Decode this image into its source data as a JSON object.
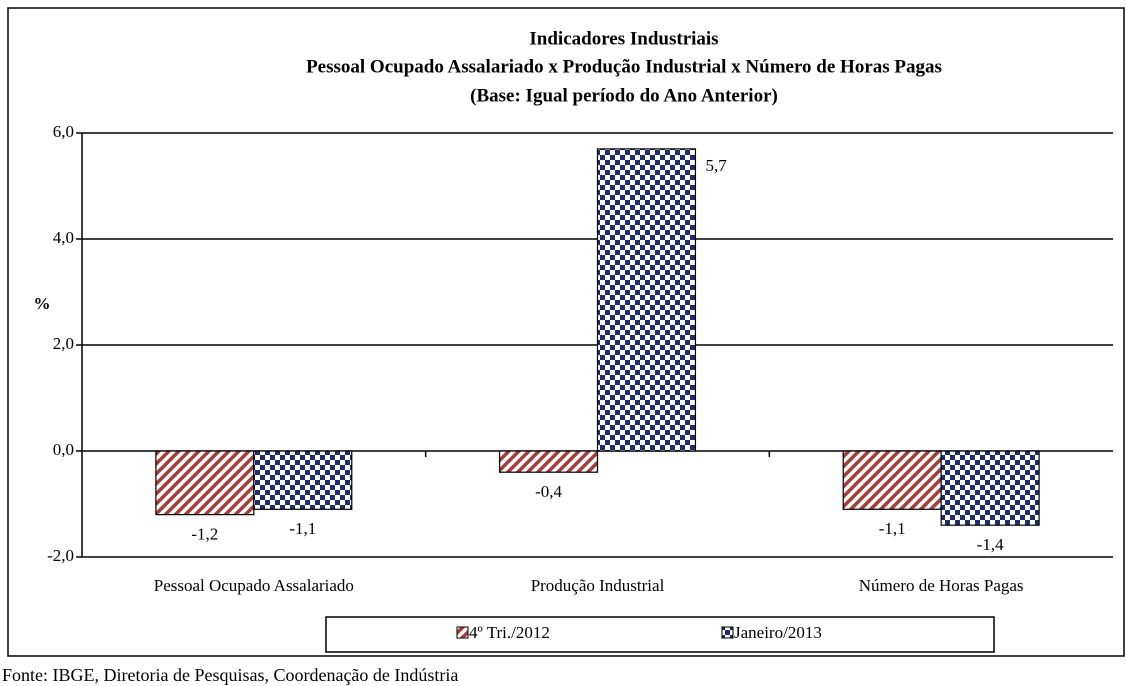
{
  "chart_data": {
    "type": "bar",
    "title": [
      "Indicadores Industriais",
      "Pessoal Ocupado  Assalariado x Produção Industrial x Número de Horas Pagas",
      "(Base: Igual período do Ano Anterior)"
    ],
    "y_label": "%",
    "categories": [
      "Pessoal Ocupado Assalariado",
      "Produção Industrial",
      "Número de Horas Pagas"
    ],
    "series": [
      {
        "name": "4º Tri./2012",
        "color": "#a3403b",
        "pattern": "hatch",
        "values": [
          -1.2,
          -0.4,
          -1.1
        ],
        "value_labels": [
          "-1,2",
          "-0,4",
          "-1,1"
        ]
      },
      {
        "name": "Janeiro/2013",
        "color": "#1f2d6e",
        "pattern": "checker",
        "values": [
          -1.1,
          5.7,
          -1.4
        ],
        "value_labels": [
          "-1,1",
          "5,7",
          "-1,4"
        ]
      }
    ],
    "ylim": [
      -2,
      6
    ],
    "yticks": [
      {
        "value": -2,
        "label": "-2,0"
      },
      {
        "value": 0,
        "label": "0,0"
      },
      {
        "value": 2,
        "label": "2,0"
      },
      {
        "value": 4,
        "label": "4,0"
      },
      {
        "value": 6,
        "label": "6,0"
      }
    ],
    "grid": true,
    "legend": "bottom",
    "source": "Fonte: IBGE, Diretoria de Pesquisas, Coordenação de Indústria"
  }
}
